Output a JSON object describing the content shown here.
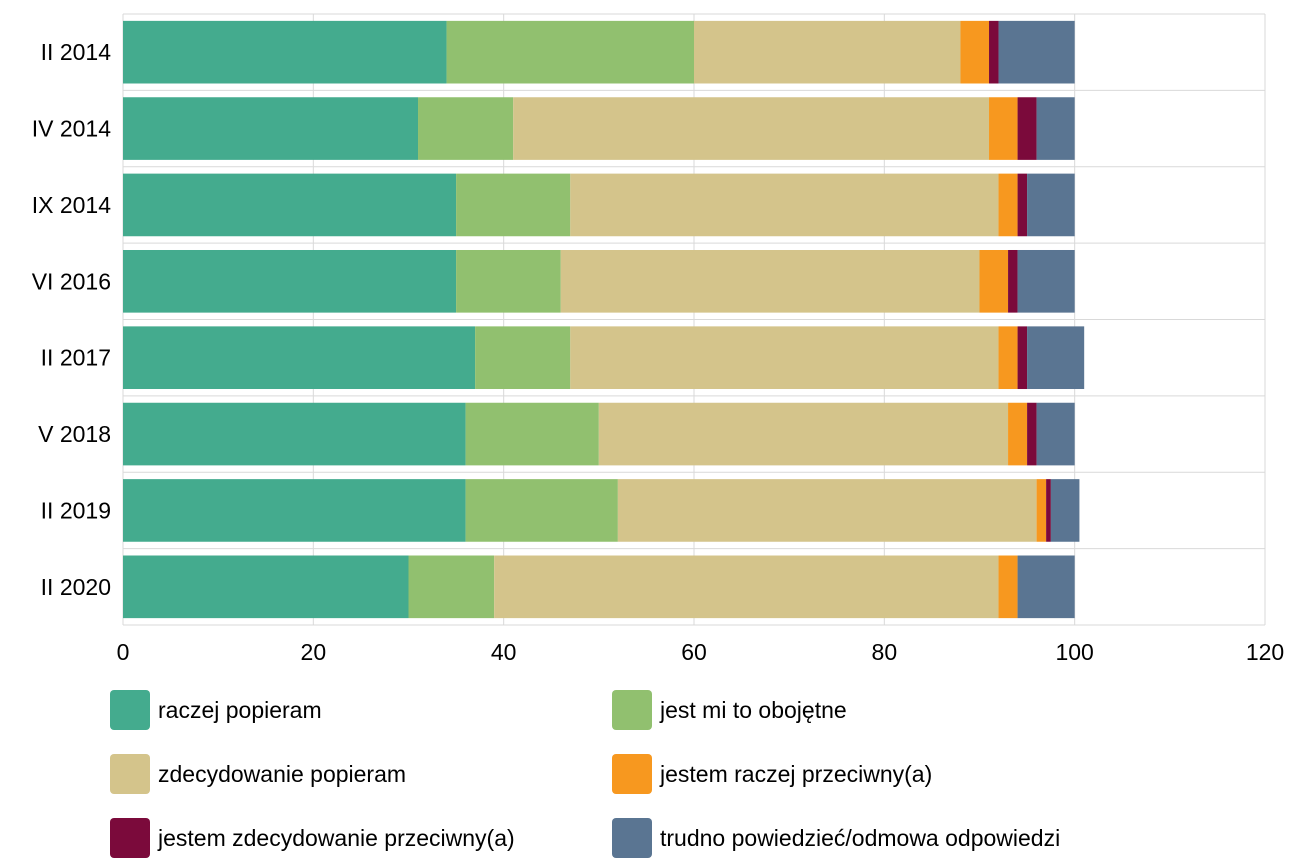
{
  "chart_data": {
    "type": "bar",
    "orientation": "horizontal",
    "stacked": true,
    "title": "",
    "xlabel": "",
    "ylabel": "",
    "xlim": [
      0,
      120
    ],
    "x_ticks": [
      0,
      20,
      40,
      60,
      80,
      100,
      120
    ],
    "grid": true,
    "legend_position": "bottom",
    "categories": [
      "II 2014",
      "IV 2014",
      "IX 2014",
      "VI 2016",
      "II 2017",
      "V 2018",
      "II 2019",
      "II 2020"
    ],
    "series": [
      {
        "name": "raczej popieram",
        "color": "#44ab8e",
        "values": [
          34,
          31,
          35,
          35,
          37,
          36,
          36,
          30
        ]
      },
      {
        "name": "jest mi to obojętne",
        "color": "#91c06f",
        "values": [
          26,
          10,
          12,
          11,
          10,
          14,
          16,
          9
        ]
      },
      {
        "name": "zdecydowanie popieram",
        "color": "#d4c48b",
        "values": [
          28,
          50,
          45,
          44,
          45,
          43,
          44,
          53
        ]
      },
      {
        "name": "jestem raczej przeciwny(a)",
        "color": "#f7981f",
        "values": [
          3,
          3,
          2,
          3,
          2,
          2,
          1,
          2
        ]
      },
      {
        "name": "jestem zdecydowanie przeciwny(a)",
        "color": "#7b0a3b",
        "values": [
          1,
          2,
          1,
          1,
          1,
          1,
          0.5,
          0
        ]
      },
      {
        "name": "trudno powiedzieć/odmowa odpowiedzi",
        "color": "#5a7592",
        "values": [
          8,
          4,
          5,
          6,
          6,
          4,
          3,
          6
        ]
      }
    ]
  }
}
